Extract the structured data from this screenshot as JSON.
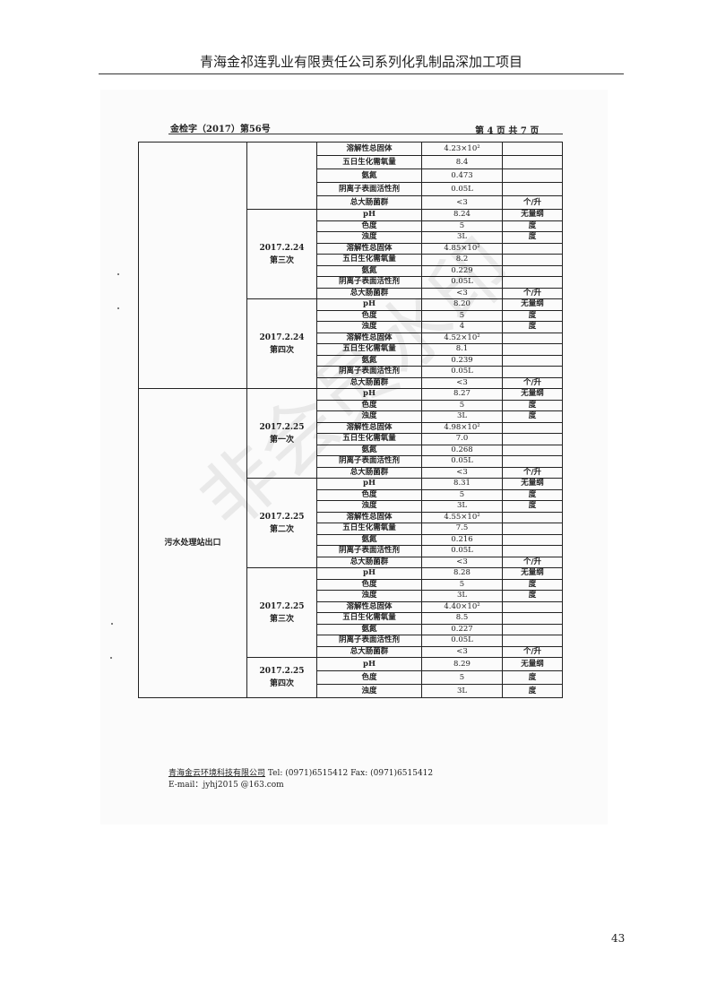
{
  "header": {
    "title": "青海金祁连乳业有限责任公司系列化乳制品深加工项目"
  },
  "report": {
    "ref": "金检字（2017）第56号",
    "page_info": "第 4 页 共 7 页"
  },
  "table": {
    "locations": [
      "",
      "污水处理站出口"
    ],
    "groups": [
      {
        "loc": 0,
        "date": "",
        "batch": "",
        "rows": [
          [
            "溶解性总固体",
            "4.23×10²",
            ""
          ],
          [
            "五日生化需氧量",
            "8.4",
            ""
          ],
          [
            "氨氮",
            "0.473",
            ""
          ],
          [
            "阴离子表面活性剂",
            "0.05L",
            ""
          ],
          [
            "总大肠菌群",
            "<3",
            "个/升"
          ]
        ]
      },
      {
        "loc": 0,
        "date": "2017.2.24",
        "batch": "第三次",
        "rows": [
          [
            "pH",
            "8.24",
            "无量纲"
          ],
          [
            "色度",
            "5",
            "度"
          ],
          [
            "浊度",
            "3L",
            "度"
          ],
          [
            "溶解性总固体",
            "4.85×10²",
            ""
          ],
          [
            "五日生化需氧量",
            "8.2",
            ""
          ],
          [
            "氨氮",
            "0.229",
            ""
          ],
          [
            "阴离子表面活性剂",
            "0.05L",
            ""
          ],
          [
            "总大肠菌群",
            "<3",
            "个/升"
          ]
        ]
      },
      {
        "loc": 0,
        "date": "2017.2.24",
        "batch": "第四次",
        "rows": [
          [
            "pH",
            "8.20",
            "无量纲"
          ],
          [
            "色度",
            "5",
            "度"
          ],
          [
            "浊度",
            "4",
            "度"
          ],
          [
            "溶解性总固体",
            "4.52×10²",
            ""
          ],
          [
            "五日生化需氧量",
            "8.1",
            ""
          ],
          [
            "氨氮",
            "0.239",
            ""
          ],
          [
            "阴离子表面活性剂",
            "0.05L",
            ""
          ],
          [
            "总大肠菌群",
            "<3",
            "个/升"
          ]
        ]
      },
      {
        "loc": 1,
        "date": "2017.2.25",
        "batch": "第一次",
        "rows": [
          [
            "pH",
            "8.27",
            "无量纲"
          ],
          [
            "色度",
            "5",
            "度"
          ],
          [
            "浊度",
            "3L",
            "度"
          ],
          [
            "溶解性总固体",
            "4.98×10²",
            ""
          ],
          [
            "五日生化需氧量",
            "7.0",
            ""
          ],
          [
            "氨氮",
            "0.268",
            ""
          ],
          [
            "阴离子表面活性剂",
            "0.05L",
            ""
          ],
          [
            "总大肠菌群",
            "<3",
            "个/升"
          ]
        ]
      },
      {
        "loc": 1,
        "date": "2017.2.25",
        "batch": "第二次",
        "rows": [
          [
            "pH",
            "8.31",
            "无量纲"
          ],
          [
            "色度",
            "5",
            "度"
          ],
          [
            "浊度",
            "3L",
            "度"
          ],
          [
            "溶解性总固体",
            "4.55×10²",
            ""
          ],
          [
            "五日生化需氧量",
            "7.5",
            ""
          ],
          [
            "氨氮",
            "0.216",
            ""
          ],
          [
            "阴离子表面活性剂",
            "0.05L",
            ""
          ],
          [
            "总大肠菌群",
            "<3",
            "个/升"
          ]
        ]
      },
      {
        "loc": 1,
        "date": "2017.2.25",
        "batch": "第三次",
        "rows": [
          [
            "pH",
            "8.28",
            "无量纲"
          ],
          [
            "色度",
            "5",
            "度"
          ],
          [
            "浊度",
            "3L",
            "度"
          ],
          [
            "溶解性总固体",
            "4.40×10²",
            ""
          ],
          [
            "五日生化需氧量",
            "8.5",
            ""
          ],
          [
            "氨氮",
            "0.227",
            ""
          ],
          [
            "阴离子表面活性剂",
            "0.05L",
            ""
          ],
          [
            "总大肠菌群",
            "<3",
            "个/升"
          ]
        ]
      },
      {
        "loc": 1,
        "date": "2017.2.25",
        "batch": "第四次",
        "rows": [
          [
            "pH",
            "8.29",
            "无量纲"
          ],
          [
            "色度",
            "5",
            "度"
          ],
          [
            "浊度",
            "3L",
            "度"
          ]
        ]
      }
    ]
  },
  "footer": {
    "company": "青海金云环境科技有限公司",
    "contact": " Tel:  (0971)6515412   Fax:  (0971)6515412",
    "email": "E-mail：jyhj2015 @163.com"
  },
  "watermark": "非会员水印",
  "page_number": "43"
}
